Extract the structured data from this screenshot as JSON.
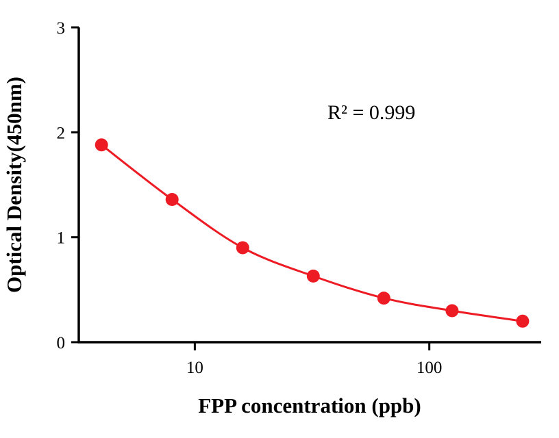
{
  "chart_data": {
    "type": "line",
    "title": "",
    "xlabel": "FPP concentration (ppb)",
    "ylabel": "Optical Density(450nm)",
    "annotation": "R² = 0.999",
    "x_scale": "log",
    "x": [
      4,
      8,
      16,
      32,
      64,
      125,
      250
    ],
    "y": [
      1.88,
      1.36,
      0.9,
      0.63,
      0.42,
      0.3,
      0.2
    ],
    "x_ticks": [
      10,
      100
    ],
    "y_ticks": [
      0,
      1,
      2,
      3
    ],
    "xlim": [
      3.2,
      300
    ],
    "ylim": [
      0,
      3
    ],
    "grid": false,
    "legend": "none",
    "line_color": "#ed1c24",
    "marker_color": "#ed1c24",
    "axis_color": "#000000"
  }
}
